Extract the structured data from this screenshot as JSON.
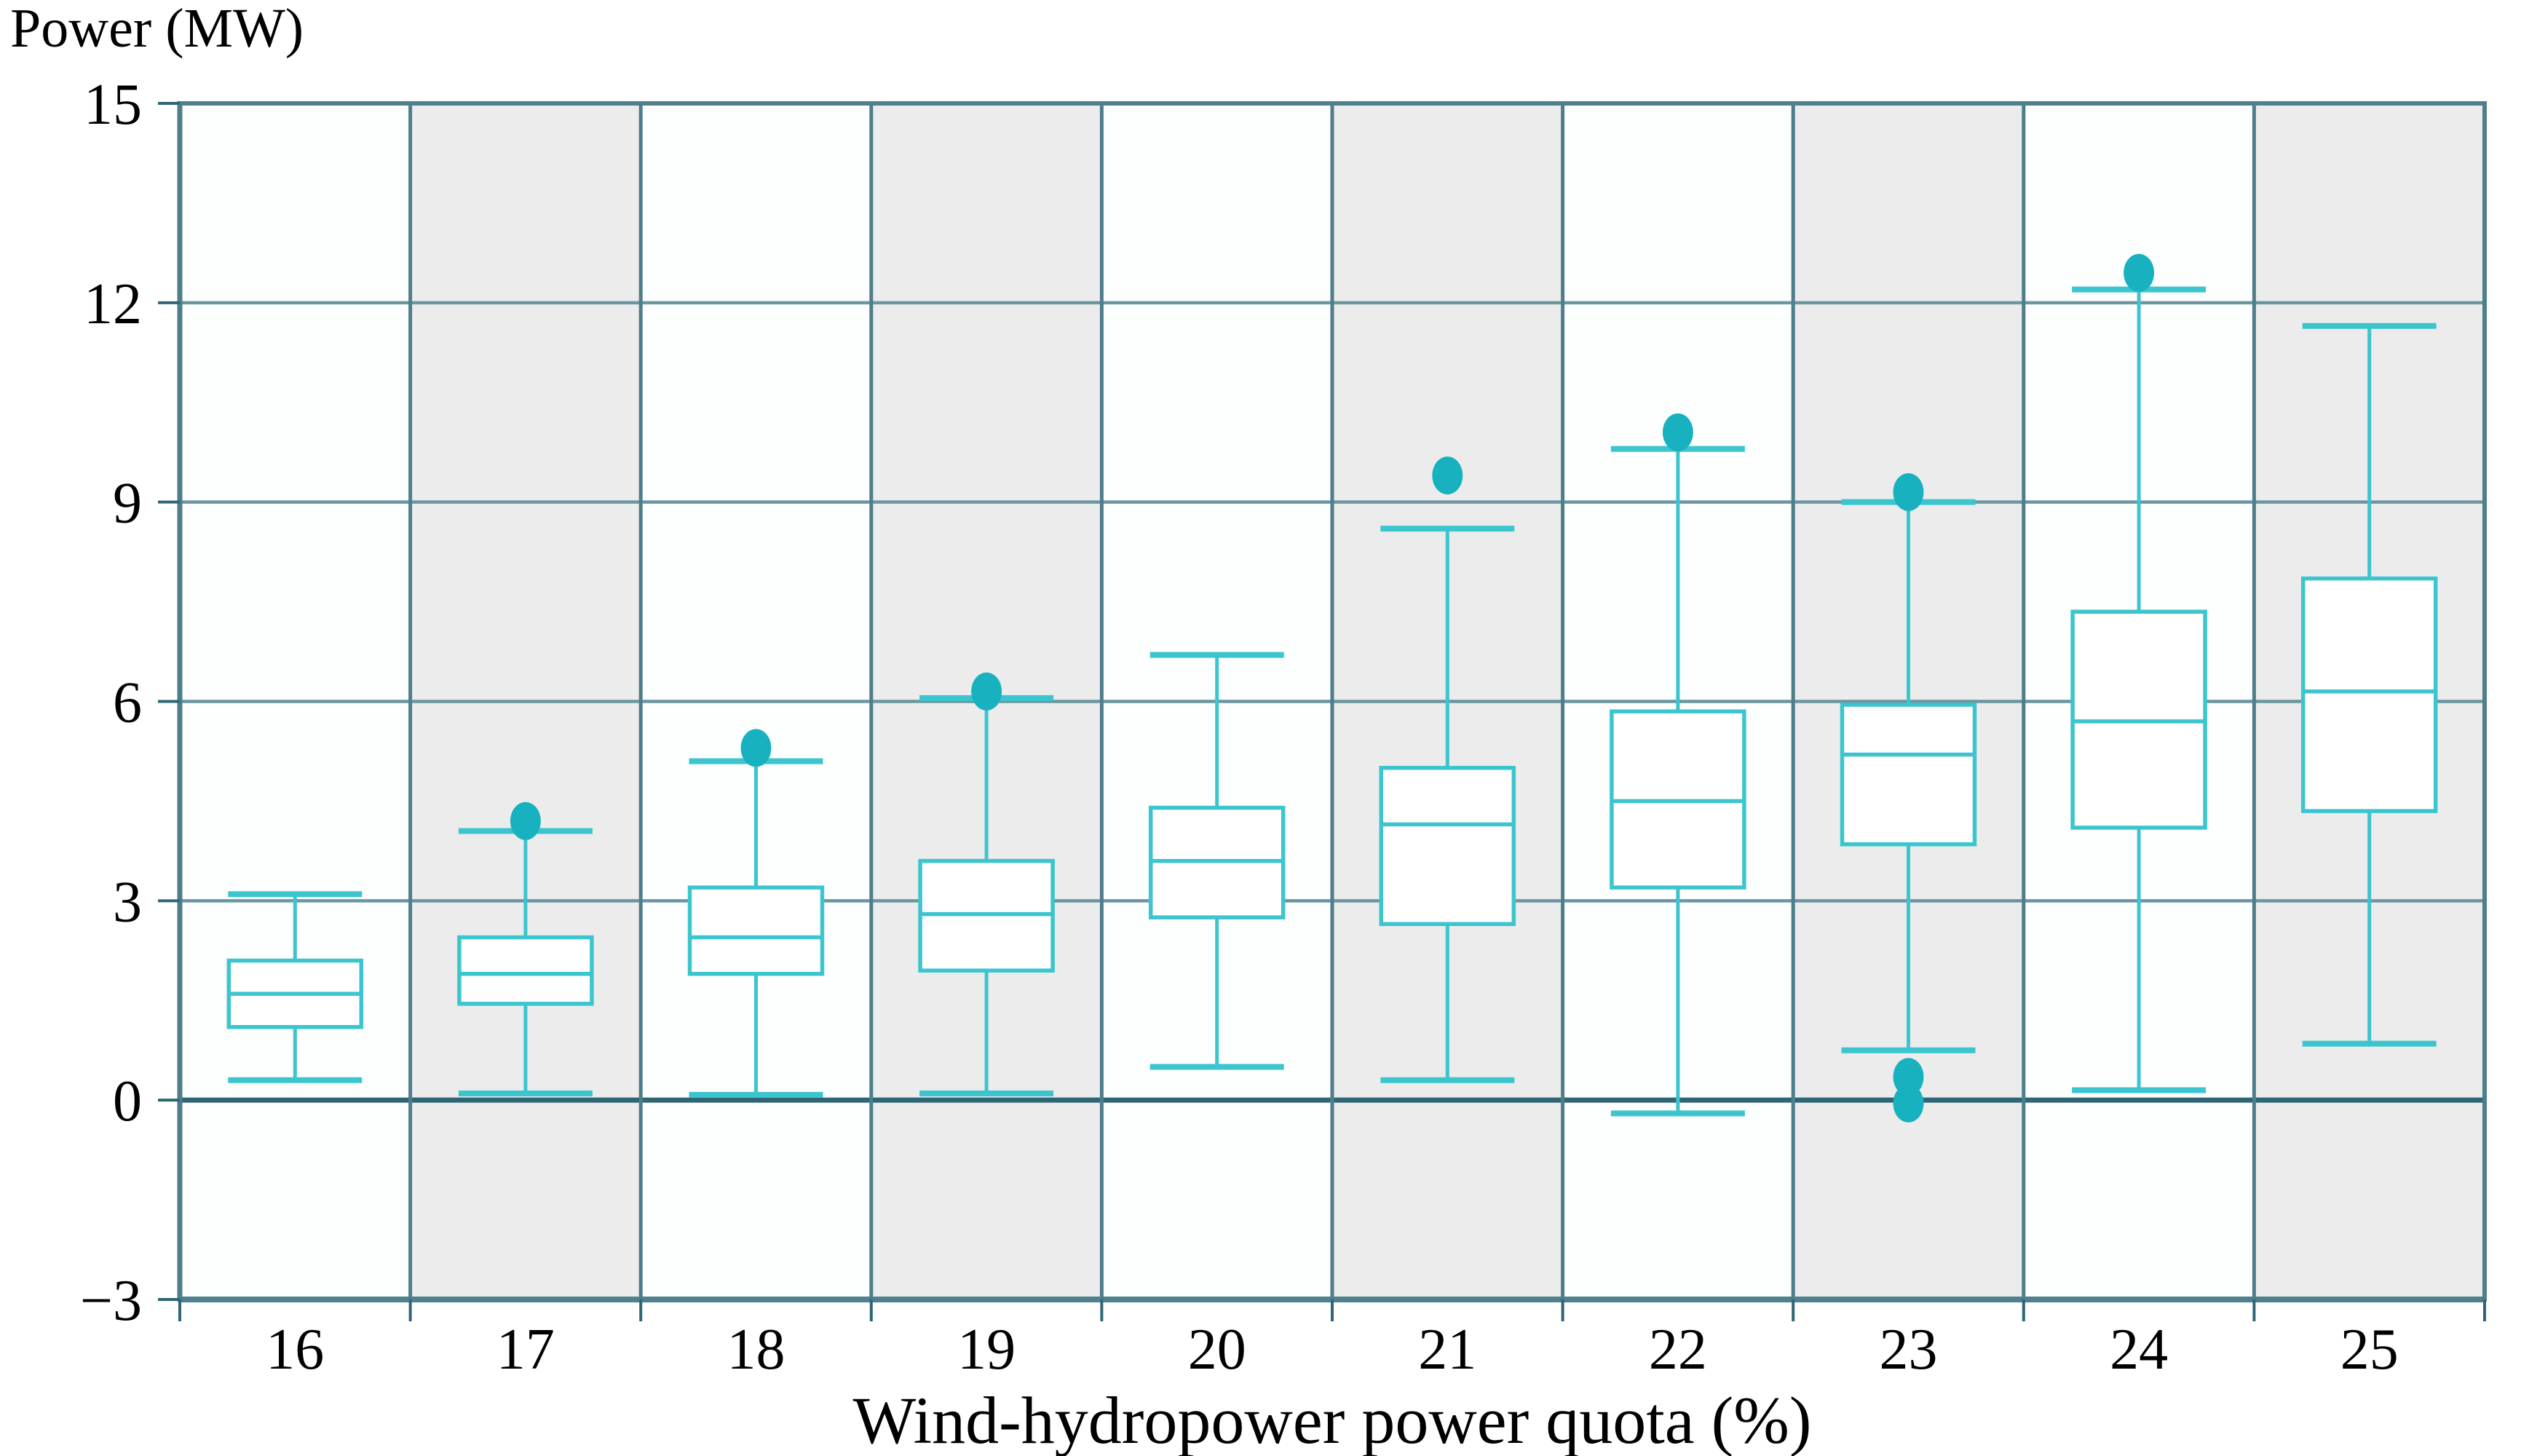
{
  "chart_data": {
    "type": "box",
    "title": "",
    "ylabel": "Power (MW)",
    "xlabel": "Wind-hydropower power quota (%)",
    "ylim": [
      -3,
      15
    ],
    "yticks": [
      15,
      12,
      9,
      6,
      3,
      0,
      -3
    ],
    "categories": [
      "16",
      "17",
      "18",
      "19",
      "20",
      "21",
      "22",
      "23",
      "24",
      "25"
    ],
    "grid": "horizontal gridlines at ticks, alternating vertical column bands",
    "legend": "none",
    "boxes": [
      {
        "category": "16",
        "low": 0.3,
        "q1": 1.1,
        "median": 1.6,
        "q3": 2.1,
        "high": 3.1,
        "outliers": []
      },
      {
        "category": "17",
        "low": 0.1,
        "q1": 1.45,
        "median": 1.9,
        "q3": 2.45,
        "high": 4.05,
        "outliers": [
          4.2
        ]
      },
      {
        "category": "18",
        "low": 0.08,
        "q1": 1.9,
        "median": 2.45,
        "q3": 3.2,
        "high": 5.1,
        "outliers": [
          5.3
        ]
      },
      {
        "category": "19",
        "low": 0.1,
        "q1": 1.95,
        "median": 2.8,
        "q3": 3.6,
        "high": 6.05,
        "outliers": [
          6.15
        ]
      },
      {
        "category": "20",
        "low": 0.5,
        "q1": 2.75,
        "median": 3.6,
        "q3": 4.4,
        "high": 6.7,
        "outliers": []
      },
      {
        "category": "21",
        "low": 0.3,
        "q1": 2.65,
        "median": 4.15,
        "q3": 5.0,
        "high": 8.6,
        "outliers": [
          9.4
        ]
      },
      {
        "category": "22",
        "low": -0.2,
        "q1": 3.2,
        "median": 4.5,
        "q3": 5.85,
        "high": 9.8,
        "outliers": [
          10.05
        ]
      },
      {
        "category": "23",
        "low": 0.75,
        "q1": 3.85,
        "median": 5.2,
        "q3": 5.95,
        "high": 9.0,
        "outliers": [
          9.15,
          0.35,
          -0.05
        ]
      },
      {
        "category": "24",
        "low": 0.15,
        "q1": 4.1,
        "median": 5.7,
        "q3": 7.35,
        "high": 12.2,
        "outliers": [
          12.45
        ]
      },
      {
        "category": "25",
        "low": 0.85,
        "q1": 4.35,
        "median": 6.15,
        "q3": 7.85,
        "high": 11.65,
        "outliers": []
      }
    ],
    "colors": {
      "box_stroke": "#3cc5ce",
      "box_fill": "#ffffff",
      "outlier_fill": "#18b1bf",
      "grid_light": "#6996a1",
      "column_separator": "#4d7e8b",
      "axis_strong": "#2f6574",
      "plot_border": "#4f808d",
      "band_gray": "#ececec",
      "band_white": "#fdfefe",
      "text": "#000000"
    }
  }
}
